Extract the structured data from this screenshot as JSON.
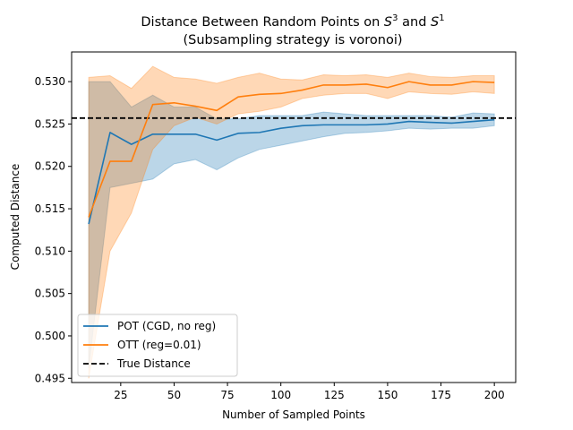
{
  "chart_data": {
    "type": "line",
    "title_line1_prefix": "Distance Between Random Points on ",
    "title_s3_base": "S",
    "title_s3_exp": "3",
    "title_mid": " and ",
    "title_s1_base": "S",
    "title_s1_exp": "1",
    "title_line2": "(Subsampling strategy is voronoi)",
    "xlabel": "Number of Sampled Points",
    "ylabel": "Computed Distance",
    "xlim": [
      2,
      210
    ],
    "ylim": [
      0.4945,
      0.5335
    ],
    "xticks": [
      25,
      50,
      75,
      100,
      125,
      150,
      175,
      200
    ],
    "yticks": [
      0.495,
      0.5,
      0.505,
      0.51,
      0.515,
      0.52,
      0.525,
      0.53
    ],
    "x": [
      10,
      20,
      30,
      40,
      50,
      60,
      70,
      80,
      90,
      100,
      110,
      120,
      130,
      140,
      150,
      160,
      170,
      180,
      190,
      200
    ],
    "series": [
      {
        "name": "POT (CGD, no reg)",
        "color": "#1f77b4",
        "values": [
          0.5132,
          0.524,
          0.5226,
          0.5238,
          0.5238,
          0.5238,
          0.5231,
          0.5239,
          0.524,
          0.5245,
          0.5248,
          0.5249,
          0.5249,
          0.5249,
          0.525,
          0.5253,
          0.5252,
          0.5251,
          0.5253,
          0.5255
        ],
        "lower": [
          0.4962,
          0.5175,
          0.518,
          0.5185,
          0.5203,
          0.5208,
          0.5196,
          0.521,
          0.522,
          0.5225,
          0.523,
          0.5235,
          0.5239,
          0.524,
          0.5242,
          0.5245,
          0.5244,
          0.5245,
          0.5245,
          0.5248
        ],
        "upper": [
          0.53,
          0.53,
          0.527,
          0.5284,
          0.527,
          0.527,
          0.5256,
          0.5256,
          0.526,
          0.526,
          0.526,
          0.5264,
          0.5262,
          0.526,
          0.526,
          0.526,
          0.526,
          0.5258,
          0.5263,
          0.5262
        ]
      },
      {
        "name": "OTT (reg=0.01)",
        "color": "#ff7f0e",
        "values": [
          0.514,
          0.5206,
          0.5206,
          0.5273,
          0.5275,
          0.5271,
          0.5266,
          0.5282,
          0.5285,
          0.5286,
          0.529,
          0.5296,
          0.5296,
          0.5297,
          0.5293,
          0.53,
          0.5296,
          0.5296,
          0.53,
          0.5299
        ],
        "lower": [
          0.495,
          0.51,
          0.5145,
          0.522,
          0.5248,
          0.5258,
          0.525,
          0.5262,
          0.5265,
          0.527,
          0.528,
          0.5284,
          0.5286,
          0.5286,
          0.528,
          0.5288,
          0.5286,
          0.5285,
          0.5288,
          0.5286
        ],
        "upper": [
          0.5305,
          0.5307,
          0.5292,
          0.5318,
          0.5305,
          0.5303,
          0.5298,
          0.5305,
          0.531,
          0.5303,
          0.5302,
          0.5308,
          0.5307,
          0.5308,
          0.5305,
          0.531,
          0.5306,
          0.5305,
          0.5307,
          0.5307
        ]
      }
    ],
    "reference_line": {
      "name": "True Distance",
      "y": 0.5257,
      "color": "#000000",
      "style": "dashed"
    },
    "legend_entries": [
      "POT (CGD, no reg)",
      "OTT (reg=0.01)",
      "True Distance"
    ],
    "legend_position": "lower-left",
    "grid": false
  }
}
